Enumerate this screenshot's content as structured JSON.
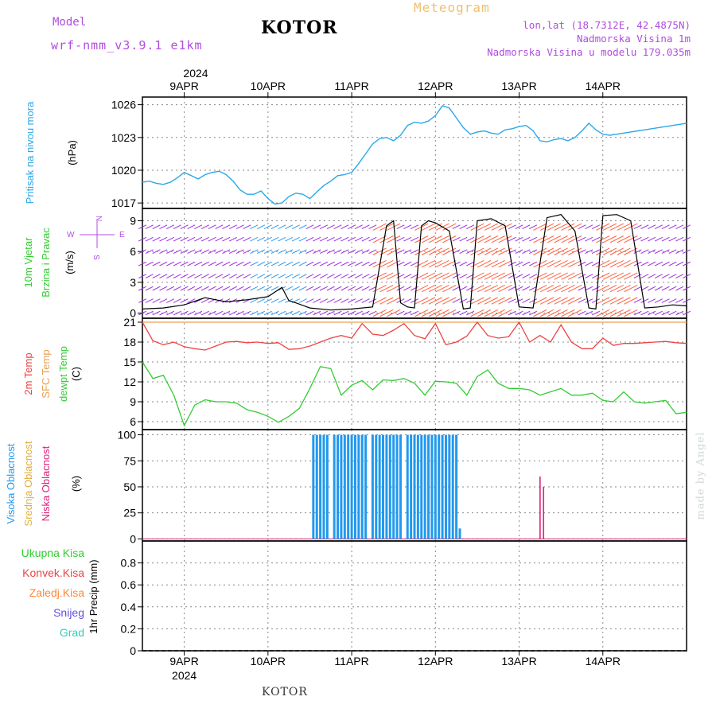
{
  "header": {
    "model_label": "Model",
    "model_name": "wrf-nmm_v3.9.1  e1km",
    "station": "KOTOR",
    "product": "Meteogram",
    "lonlat": "lon,lat (18.7312E, 42.4875N)",
    "elevation": "Nadmorska Visina 1m",
    "model_elevation": "Nadmorska Visina u modelu 179.035m"
  },
  "footer": {
    "station": "KOTOR",
    "credit": "made by Angel"
  },
  "colors": {
    "pressure": "#2aa8e8",
    "temp2m": "#ee4444",
    "sfc_temp": "#e8a050",
    "dewpoint": "#33cc33",
    "high_cloud": "#2299ee",
    "mid_cloud": "#e0b040",
    "low_cloud": "#e0207a",
    "purple_text": "#b04ce0"
  },
  "chart_data": [
    {
      "type": "line",
      "panel": "pressure",
      "ylabel": [
        "Pritisak na nivou mora",
        "(hPa)"
      ],
      "ylim": [
        1016.5,
        1026.7
      ],
      "yticks": [
        1017,
        1020,
        1023,
        1026
      ],
      "top_year": "2024",
      "day_ticks": [
        "9APR",
        "10APR",
        "11APR",
        "12APR",
        "13APR",
        "14APR"
      ],
      "x_hours_range": [
        -12,
        144
      ],
      "series": [
        {
          "x": [
            -12,
            -10,
            -8,
            -6,
            -4,
            -2,
            0,
            2,
            4,
            6,
            8,
            10,
            12,
            14,
            16,
            18,
            20,
            22,
            24,
            26,
            28,
            30,
            32,
            34,
            36,
            38,
            40,
            42,
            44,
            46,
            48,
            50,
            52,
            54,
            56,
            58,
            60,
            62,
            64,
            66,
            68,
            70,
            72,
            74,
            76,
            78,
            80,
            82,
            84,
            86,
            88,
            90,
            92,
            94,
            96,
            98,
            100,
            102,
            104,
            106,
            108,
            110,
            112,
            114,
            116,
            118,
            120,
            122,
            124,
            126,
            128,
            130,
            132,
            134,
            136,
            138,
            140,
            142,
            144
          ],
          "values": [
            1018.9,
            1019.0,
            1018.8,
            1018.7,
            1018.9,
            1019.3,
            1019.8,
            1019.5,
            1019.2,
            1019.6,
            1019.8,
            1019.9,
            1019.6,
            1019.0,
            1018.2,
            1017.8,
            1017.8,
            1018.1,
            1017.4,
            1016.9,
            1017.0,
            1017.6,
            1017.9,
            1017.8,
            1017.4,
            1018.0,
            1018.6,
            1019.0,
            1019.5,
            1019.6,
            1019.8,
            1020.6,
            1021.5,
            1022.4,
            1022.9,
            1023.0,
            1022.7,
            1023.2,
            1024.1,
            1024.4,
            1024.3,
            1024.5,
            1025.0,
            1025.9,
            1025.7,
            1024.8,
            1023.9,
            1023.3,
            1023.5,
            1023.6,
            1023.4,
            1023.3,
            1023.7,
            1023.8,
            1024.0,
            1024.1,
            1023.6,
            1022.7,
            1022.6,
            1022.8,
            1022.9,
            1022.7,
            1023.0,
            1023.6,
            1024.3,
            1023.7,
            1023.3,
            1023.2,
            1023.3,
            1023.4,
            1023.5,
            1023.6,
            1023.7,
            1023.8,
            1023.9,
            1024.0,
            1024.1,
            1024.2,
            1024.3
          ]
        }
      ]
    },
    {
      "type": "line",
      "panel": "wind",
      "ylabel": [
        "10m Vjetar",
        "Brzina i Pravac",
        "(m/s)"
      ],
      "compass": {
        "N": "N",
        "E": "E",
        "W": "W",
        "S": "S"
      },
      "ylim": [
        -0.5,
        10.2
      ],
      "yticks": [
        0,
        3,
        6,
        9
      ],
      "series": [
        {
          "name": "",
          "x": [
            -12,
            -6,
            0,
            6,
            12,
            18,
            24,
            28,
            30,
            32,
            36,
            42,
            48,
            54,
            58,
            60,
            62,
            64,
            66,
            68,
            70,
            72,
            76,
            80,
            82,
            84,
            88,
            92,
            96,
            100,
            104,
            108,
            112,
            116,
            118,
            120,
            124,
            128,
            132,
            136,
            140,
            144
          ],
          "values": [
            0.4,
            0.5,
            0.8,
            1.5,
            1.1,
            1.3,
            1.6,
            2.5,
            1.2,
            1.0,
            0.5,
            0.3,
            0.4,
            0.6,
            8.5,
            9.0,
            1.0,
            0.6,
            0.5,
            8.5,
            9.0,
            8.8,
            8.0,
            0.4,
            0.5,
            9.0,
            9.2,
            8.5,
            0.6,
            0.5,
            9.3,
            9.6,
            8.0,
            0.5,
            0.4,
            9.5,
            9.6,
            9.0,
            0.5,
            0.6,
            0.8,
            0.7
          ]
        }
      ]
    },
    {
      "type": "line",
      "panel": "temperature",
      "ylabel": [
        "2m Temp",
        "SFC Temp",
        "dewpt Temp",
        "(C)"
      ],
      "ylim": [
        4.8,
        21.6
      ],
      "yticks": [
        6,
        9,
        12,
        15,
        18,
        21
      ],
      "series": [
        {
          "name": "2m Temp",
          "x": [
            -12,
            -9,
            -6,
            -3,
            0,
            3,
            6,
            9,
            12,
            15,
            18,
            21,
            24,
            27,
            30,
            33,
            36,
            39,
            42,
            45,
            48,
            51,
            54,
            57,
            60,
            63,
            66,
            69,
            72,
            75,
            78,
            81,
            84,
            87,
            90,
            93,
            96,
            99,
            102,
            105,
            108,
            111,
            114,
            117,
            120,
            123,
            126,
            129,
            132,
            135,
            138,
            141,
            144
          ],
          "values": [
            21.0,
            18.2,
            17.6,
            18.0,
            17.3,
            17.0,
            16.8,
            17.4,
            18.0,
            18.1,
            17.9,
            18.0,
            17.8,
            17.9,
            16.9,
            17.0,
            17.4,
            18.0,
            18.6,
            19.0,
            18.6,
            20.8,
            19.2,
            19.0,
            19.8,
            20.8,
            19.0,
            18.5,
            20.8,
            17.6,
            18.0,
            18.9,
            21.0,
            19.0,
            18.6,
            18.8,
            21.0,
            18.0,
            19.0,
            18.0,
            20.6,
            18.0,
            17.0,
            17.0,
            18.6,
            17.5,
            17.8,
            17.8,
            17.9,
            18.0,
            18.1,
            17.9,
            17.8
          ]
        },
        {
          "name": "SFC Temp",
          "x": [
            -12,
            144
          ],
          "values": [
            21.0,
            21.0
          ]
        },
        {
          "name": "dewpt Temp",
          "x": [
            -12,
            -9,
            -6,
            -3,
            0,
            3,
            6,
            9,
            12,
            15,
            18,
            21,
            24,
            27,
            30,
            33,
            36,
            39,
            42,
            45,
            48,
            51,
            54,
            57,
            60,
            63,
            66,
            69,
            72,
            75,
            78,
            81,
            84,
            87,
            90,
            93,
            96,
            99,
            102,
            105,
            108,
            111,
            114,
            117,
            120,
            123,
            126,
            129,
            132,
            135,
            138,
            141,
            144
          ],
          "values": [
            15.0,
            12.5,
            13.0,
            10.0,
            5.4,
            8.5,
            9.3,
            9.0,
            9.0,
            8.8,
            7.8,
            7.4,
            6.8,
            5.9,
            6.8,
            8.0,
            11.0,
            14.3,
            14.0,
            10.0,
            11.5,
            12.2,
            10.8,
            12.3,
            12.2,
            12.5,
            11.8,
            10.0,
            12.1,
            12.0,
            11.8,
            10.0,
            12.8,
            13.8,
            11.8,
            11.0,
            11.0,
            10.8,
            10.0,
            10.5,
            11.0,
            10.0,
            10.0,
            10.3,
            9.2,
            9.0,
            10.5,
            9.0,
            8.8,
            9.0,
            9.2,
            7.2,
            7.4
          ]
        }
      ]
    },
    {
      "type": "bar",
      "panel": "cloud",
      "ylabel": [
        "Visoka Oblacnost",
        "Srednja Oblacnost",
        "Niska Oblacnost",
        "(%)"
      ],
      "ylim": [
        -2,
        105
      ],
      "yticks": [
        0,
        25,
        50,
        75,
        100
      ],
      "series": [
        {
          "name": "Visoka Oblacnost",
          "x": [
            37,
            38,
            39,
            40,
            41,
            43,
            44,
            45,
            46,
            47,
            48,
            49,
            50,
            51,
            52,
            54,
            55,
            56,
            57,
            58,
            59,
            60,
            61,
            62,
            64,
            65,
            66,
            67,
            68,
            69,
            70,
            71,
            72,
            73,
            74,
            75,
            76,
            77,
            78,
            79
          ],
          "values": [
            100,
            100,
            100,
            100,
            100,
            100,
            100,
            100,
            100,
            100,
            100,
            100,
            100,
            100,
            100,
            100,
            100,
            100,
            100,
            100,
            100,
            100,
            100,
            100,
            100,
            100,
            100,
            100,
            100,
            100,
            100,
            100,
            100,
            100,
            100,
            100,
            100,
            100,
            100,
            10
          ]
        },
        {
          "name": "Niska Oblacnost",
          "x": [
            102,
            103
          ],
          "values": [
            60,
            50
          ]
        }
      ]
    },
    {
      "type": "line",
      "panel": "precip",
      "ylabel": [
        "Ukupna Kisa",
        "Konvek.Kisa",
        "Zaledj.Kisa",
        "Snijeg",
        "Grad",
        "1hr Precip (mm)"
      ],
      "ylim": [
        0,
        1.0
      ],
      "yticks": [
        "0",
        "0.2",
        "0.4",
        "0.6",
        "0.8"
      ],
      "day_ticks_bottom": [
        "9APR",
        "10APR",
        "11APR",
        "12APR",
        "13APR",
        "14APR"
      ],
      "bottom_year": "2024",
      "series": [
        {
          "name": "Ukupna Kisa",
          "x": [
            -12,
            144
          ],
          "values": [
            0,
            0
          ]
        }
      ]
    }
  ]
}
